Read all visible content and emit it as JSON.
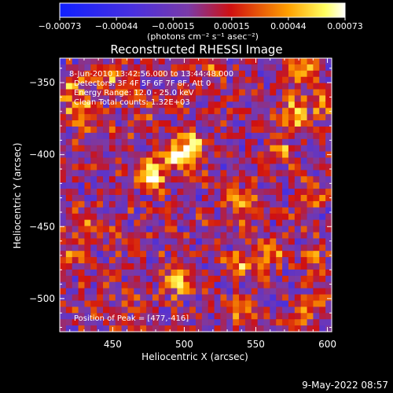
{
  "chart_data": {
    "type": "heatmap",
    "title": "Reconstructed RHESSI Image",
    "xlabel": "Heliocentric X (arcsec)",
    "ylabel": "Heliocentric Y (arcsec)",
    "xlim": [
      413,
      603
    ],
    "ylim": [
      -523,
      -333
    ],
    "x_ticks": [
      450,
      500,
      550,
      600
    ],
    "x_tick_labels": [
      "450",
      "500",
      "550",
      "600"
    ],
    "y_ticks": [
      -350,
      -400,
      -450,
      -500
    ],
    "y_tick_labels": [
      "−350",
      "−400",
      "−450",
      "−500"
    ],
    "colorbar": {
      "colormap": "blue-purple-red-yellow-white",
      "range": [
        -0.00073,
        0.00073
      ],
      "ticks": [
        -0.00073,
        -0.00044,
        -0.00015,
        0.00015,
        0.00044,
        0.00073
      ],
      "tick_labels": [
        "−0.00073",
        "−0.00044",
        "−0.00015",
        "0.00015",
        "0.00044",
        "0.00073"
      ],
      "unit_label": "(photons cm⁻² s⁻¹ asec⁻²)"
    },
    "annotations": [
      "8-Jun-2010 13:42:56.000 to 13:44:48.000",
      "Detectors: 3F 4F 5F 6F 7F 8F, Att 0",
      "Energy Range: 12.0 - 25.0 keV",
      "Clean    Total counts: 1.32E+03"
    ],
    "peak_label": "Position of Peak = [477,-416]",
    "peak": [
      477,
      -416
    ],
    "sources": [
      {
        "x": 477,
        "y": -416,
        "value": 0.00073
      },
      {
        "x": 495,
        "y": -400,
        "value": 0.0006
      },
      {
        "x": 505,
        "y": -393,
        "value": 0.00055
      },
      {
        "x": 430,
        "y": -372,
        "value": 0.0005
      },
      {
        "x": 422,
        "y": -355,
        "value": 0.00045
      },
      {
        "x": 450,
        "y": -345,
        "value": 0.0004
      },
      {
        "x": 518,
        "y": -340,
        "value": 0.0003
      },
      {
        "x": 583,
        "y": -342,
        "value": 0.0005
      },
      {
        "x": 578,
        "y": -372,
        "value": 0.0005
      },
      {
        "x": 600,
        "y": -362,
        "value": 0.0004
      },
      {
        "x": 568,
        "y": -398,
        "value": 0.00035
      },
      {
        "x": 590,
        "y": -425,
        "value": 0.0003
      },
      {
        "x": 545,
        "y": -440,
        "value": 0.00035
      },
      {
        "x": 560,
        "y": -468,
        "value": 0.0004
      },
      {
        "x": 540,
        "y": -478,
        "value": 0.0004
      },
      {
        "x": 590,
        "y": -470,
        "value": 0.0003
      },
      {
        "x": 600,
        "y": -500,
        "value": 0.0003
      },
      {
        "x": 495,
        "y": -488,
        "value": 0.0005
      },
      {
        "x": 540,
        "y": -508,
        "value": 0.0003
      },
      {
        "x": 450,
        "y": -455,
        "value": 0.00025
      },
      {
        "x": 432,
        "y": -443,
        "value": 0.0003
      },
      {
        "x": 425,
        "y": -470,
        "value": 0.00025
      },
      {
        "x": 462,
        "y": -500,
        "value": 0.0002
      },
      {
        "x": 535,
        "y": -430,
        "value": 0.00025
      },
      {
        "x": 455,
        "y": -390,
        "value": 0.0002
      },
      {
        "x": 580,
        "y": -515,
        "value": 0.00025
      },
      {
        "x": 470,
        "y": -365,
        "value": 0.0002
      }
    ]
  },
  "timestamp": "9-May-2022 08:57"
}
